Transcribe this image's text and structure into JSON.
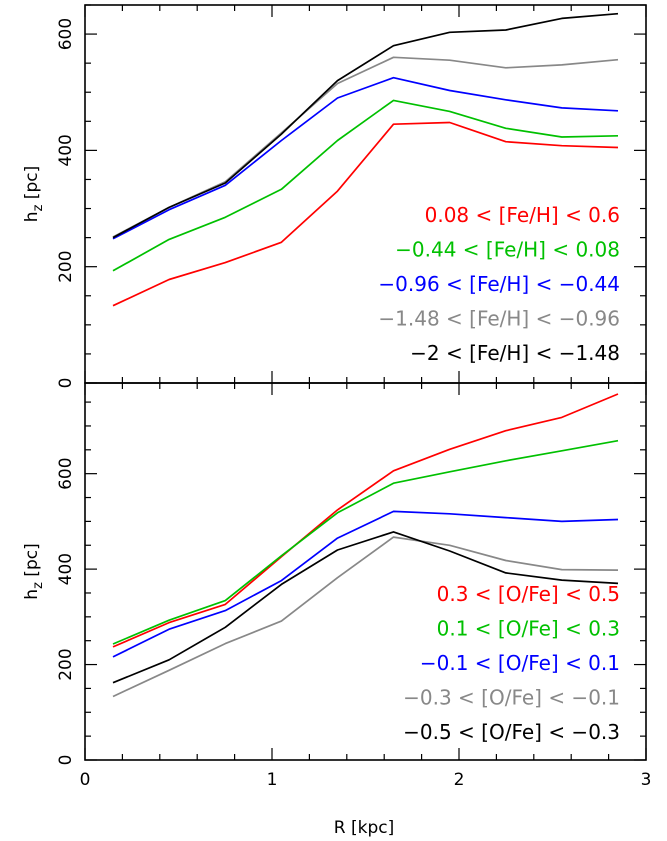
{
  "chart_data": [
    {
      "type": "line",
      "panel": "top",
      "x": [
        0.15,
        0.45,
        0.75,
        1.05,
        1.35,
        1.65,
        1.95,
        2.25,
        2.55,
        2.85
      ],
      "xlim": [
        0,
        3
      ],
      "ylim": [
        0,
        650
      ],
      "ylabel": {
        "main": "h",
        "sub": "z",
        "rest": " [pc]"
      },
      "y_ticks": [
        0,
        200,
        400,
        600
      ],
      "grid": false,
      "legend_position": "bottom-right",
      "series": [
        {
          "name": "0.08 < [Fe/H] < 0.6",
          "color": "#ff0000",
          "values": [
            133,
            178,
            207,
            242,
            330,
            445,
            448,
            415,
            408,
            405
          ]
        },
        {
          "name": "−0.44 < [Fe/H] < 0.08",
          "color": "#00c000",
          "values": [
            193,
            247,
            285,
            333,
            417,
            486,
            467,
            438,
            423,
            425
          ]
        },
        {
          "name": "−0.96 < [Fe/H] < −0.44",
          "color": "#0000ff",
          "values": [
            248,
            298,
            340,
            417,
            490,
            525,
            503,
            487,
            473,
            468
          ]
        },
        {
          "name": "−1.48 < [Fe/H] < −0.96",
          "color": "#888888",
          "values": [
            251,
            302,
            346,
            430,
            515,
            560,
            555,
            542,
            547,
            556
          ]
        },
        {
          "name": "−2 < [Fe/H] < −1.48",
          "color": "#000000",
          "values": [
            250,
            302,
            344,
            428,
            520,
            580,
            603,
            607,
            627,
            635
          ]
        }
      ]
    },
    {
      "type": "line",
      "panel": "bottom",
      "x": [
        0.15,
        0.45,
        0.75,
        1.05,
        1.35,
        1.65,
        1.95,
        2.25,
        2.55,
        2.85
      ],
      "xlim": [
        0,
        3
      ],
      "ylim": [
        0,
        790
      ],
      "xlabel": "R [kpc]",
      "ylabel": {
        "main": "h",
        "sub": "z",
        "rest": " [pc]"
      },
      "x_ticks": [
        0,
        1,
        2,
        3
      ],
      "y_ticks": [
        0,
        200,
        400,
        600
      ],
      "grid": false,
      "legend_position": "bottom-right",
      "series": [
        {
          "name": "0.3 < [O/Fe] < 0.5",
          "color": "#ff0000",
          "values": [
            237,
            288,
            326,
            426,
            524,
            606,
            651,
            690,
            718,
            767
          ]
        },
        {
          "name": "0.1 < [O/Fe] < 0.3",
          "color": "#00c000",
          "values": [
            243,
            293,
            334,
            428,
            518,
            580,
            604,
            627,
            648,
            669
          ]
        },
        {
          "name": "−0.1 < [O/Fe] < 0.1",
          "color": "#0000ff",
          "values": [
            216,
            274,
            313,
            376,
            465,
            521,
            516,
            508,
            500,
            504
          ]
        },
        {
          "name": "−0.3 < [O/Fe] < −0.1",
          "color": "#888888",
          "values": [
            133,
            188,
            244,
            291,
            382,
            467,
            450,
            418,
            399,
            398
          ]
        },
        {
          "name": "−0.5 < [O/Fe] < −0.3",
          "color": "#000000",
          "values": [
            162,
            210,
            278,
            368,
            440,
            478,
            438,
            392,
            377,
            370
          ]
        }
      ]
    }
  ]
}
